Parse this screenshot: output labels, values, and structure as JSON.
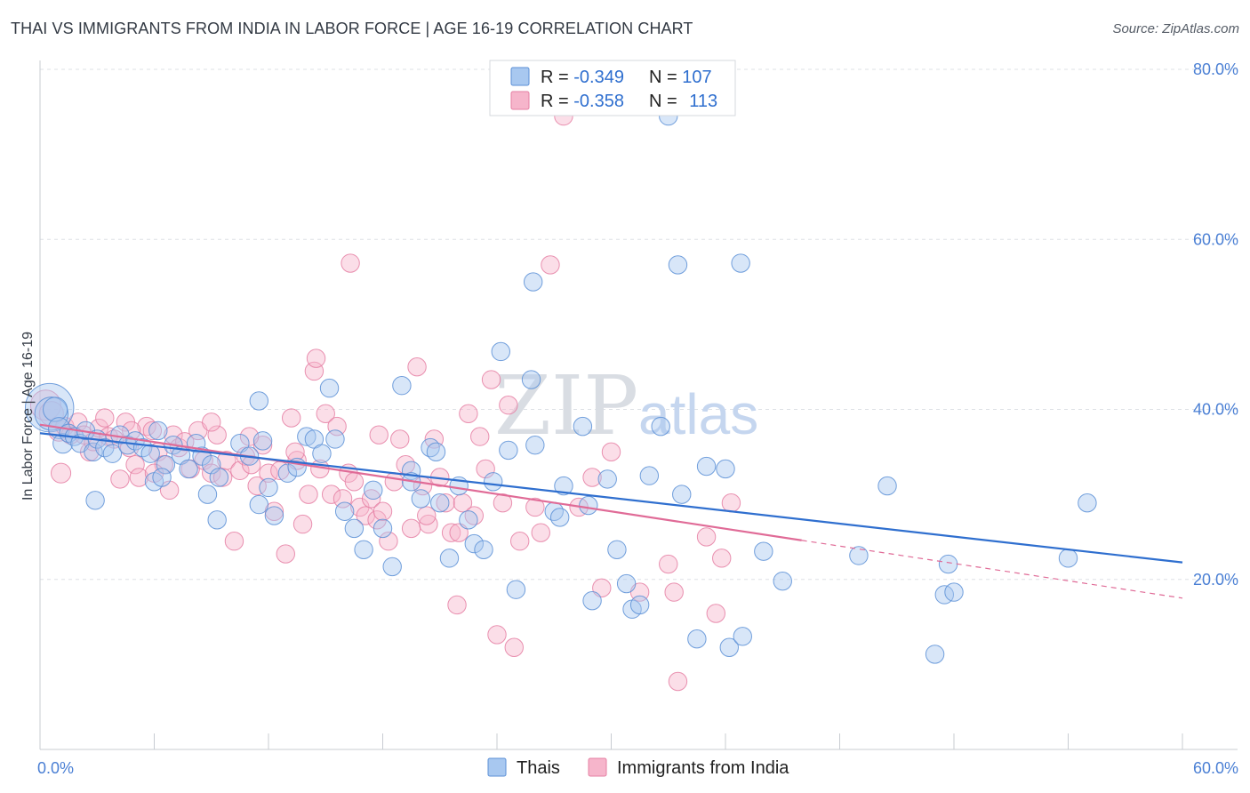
{
  "title": "THAI VS IMMIGRANTS FROM INDIA IN LABOR FORCE | AGE 16-19 CORRELATION CHART",
  "source": "Source: ZipAtlas.com",
  "watermark": {
    "zip": "ZIP",
    "atlas": "atlas"
  },
  "colors": {
    "thai_fill": "#a8c8f0",
    "thai_stroke": "#5b8fd6",
    "thai_line": "#2f6fcf",
    "india_fill": "#f6b5cb",
    "india_stroke": "#e57fa3",
    "india_line": "#e06b97",
    "accent_text": "#2f6fcf"
  },
  "stats": [
    {
      "r_label": "R = ",
      "r_value": "-0.349",
      "n_label": "N = ",
      "n_value": "107"
    },
    {
      "r_label": "R = ",
      "r_value": "-0.358",
      "n_label": "N = ",
      "n_value": "113"
    }
  ],
  "chart_data": {
    "type": "scatter",
    "ylabel": "In Labor Force | Age 16-19",
    "xlim": [
      0,
      60
    ],
    "ylim": [
      0,
      80
    ],
    "x_tick_labels": [
      {
        "value": 0,
        "label": "0.0%"
      },
      {
        "value": 60,
        "label": "60.0%"
      }
    ],
    "y_tick_labels": [
      {
        "value": 20,
        "label": "20.0%"
      },
      {
        "value": 40,
        "label": "40.0%"
      },
      {
        "value": 60,
        "label": "60.0%"
      },
      {
        "value": 80,
        "label": "80.0%"
      }
    ],
    "grid": true,
    "legend_position": "bottom-center",
    "series": [
      {
        "name": "Thais",
        "trend": {
          "x": [
            0,
            60
          ],
          "y": [
            37.2,
            22.0
          ],
          "solid_until": 60
        },
        "points": [
          [
            0.5,
            40.2,
            3.2
          ],
          [
            0.6,
            39.5,
            2.2
          ],
          [
            0.8,
            40.0,
            1.6
          ],
          [
            1.0,
            37.8,
            1.4
          ],
          [
            1.2,
            36.0,
            1.3
          ],
          [
            1.5,
            37.2,
            1.2
          ],
          [
            1.8,
            36.8,
            1.2
          ],
          [
            2.1,
            36.0,
            1.2
          ],
          [
            2.4,
            37.5,
            1.2
          ],
          [
            2.8,
            35.0,
            1.2
          ],
          [
            3.0,
            36.5,
            1.2
          ],
          [
            3.4,
            35.5,
            1.2
          ],
          [
            3.8,
            34.8,
            1.2
          ],
          [
            4.2,
            37.0,
            1.2
          ],
          [
            4.6,
            35.8,
            1.2
          ],
          [
            5.0,
            36.3,
            1.2
          ],
          [
            5.4,
            35.5,
            1.2
          ],
          [
            5.8,
            34.8,
            1.2
          ],
          [
            6.2,
            37.5,
            1.2
          ],
          [
            6.6,
            33.5,
            1.2
          ],
          [
            7.0,
            35.8,
            1.2
          ],
          [
            7.4,
            34.6,
            1.2
          ],
          [
            7.8,
            33.0,
            1.2
          ],
          [
            2.9,
            29.3,
            1.2
          ],
          [
            6.0,
            31.5,
            1.2
          ],
          [
            6.4,
            32.0,
            1.2
          ],
          [
            8.2,
            36.0,
            1.2
          ],
          [
            8.5,
            34.5,
            1.2
          ],
          [
            9.0,
            33.5,
            1.2
          ],
          [
            9.4,
            32.0,
            1.2
          ],
          [
            8.8,
            30.0,
            1.2
          ],
          [
            9.3,
            27.0,
            1.2
          ],
          [
            10.5,
            36.0,
            1.2
          ],
          [
            11.0,
            34.5,
            1.2
          ],
          [
            12.0,
            30.8,
            1.2
          ],
          [
            11.5,
            28.8,
            1.2
          ],
          [
            12.3,
            27.5,
            1.2
          ],
          [
            11.7,
            36.3,
            1.2
          ],
          [
            11.5,
            41.0,
            1.2
          ],
          [
            13.0,
            32.5,
            1.2
          ],
          [
            13.5,
            33.2,
            1.2
          ],
          [
            14.0,
            36.8,
            1.2
          ],
          [
            14.4,
            36.5,
            1.2
          ],
          [
            14.8,
            34.8,
            1.2
          ],
          [
            15.5,
            36.5,
            1.2
          ],
          [
            15.2,
            42.5,
            1.2
          ],
          [
            16.0,
            28.0,
            1.2
          ],
          [
            16.5,
            26.0,
            1.2
          ],
          [
            17.0,
            23.5,
            1.2
          ],
          [
            17.5,
            30.5,
            1.2
          ],
          [
            18.0,
            26.0,
            1.2
          ],
          [
            18.5,
            21.5,
            1.2
          ],
          [
            19.0,
            42.8,
            1.2
          ],
          [
            19.5,
            32.8,
            1.2
          ],
          [
            19.5,
            31.5,
            1.2
          ],
          [
            20.0,
            29.5,
            1.2
          ],
          [
            20.5,
            35.5,
            1.2
          ],
          [
            20.8,
            35.0,
            1.2
          ],
          [
            21.0,
            29.0,
            1.2
          ],
          [
            21.5,
            22.5,
            1.2
          ],
          [
            22.0,
            31.0,
            1.2
          ],
          [
            22.5,
            27.0,
            1.2
          ],
          [
            22.8,
            24.2,
            1.2
          ],
          [
            23.3,
            23.5,
            1.2
          ],
          [
            23.8,
            31.5,
            1.2
          ],
          [
            24.2,
            46.8,
            1.2
          ],
          [
            24.6,
            35.2,
            1.2
          ],
          [
            25.0,
            18.8,
            1.2
          ],
          [
            26.0,
            35.8,
            1.2
          ],
          [
            25.8,
            43.5,
            1.2
          ],
          [
            25.9,
            55.0,
            1.2
          ],
          [
            27.0,
            28.0,
            1.2
          ],
          [
            27.3,
            27.3,
            1.2
          ],
          [
            27.5,
            31.0,
            1.2
          ],
          [
            28.5,
            38.0,
            1.2
          ],
          [
            28.8,
            28.7,
            1.2
          ],
          [
            29.0,
            17.5,
            1.2
          ],
          [
            29.8,
            31.8,
            1.2
          ],
          [
            30.3,
            23.5,
            1.2
          ],
          [
            30.8,
            19.5,
            1.2
          ],
          [
            31.1,
            16.5,
            1.2
          ],
          [
            31.5,
            17.0,
            1.2
          ],
          [
            32.0,
            32.2,
            1.2
          ],
          [
            32.6,
            38.0,
            1.2
          ],
          [
            33.0,
            74.5,
            1.2
          ],
          [
            33.5,
            57.0,
            1.2
          ],
          [
            33.7,
            30.0,
            1.2
          ],
          [
            34.5,
            13.0,
            1.2
          ],
          [
            35.0,
            33.3,
            1.2
          ],
          [
            36.0,
            33.0,
            1.2
          ],
          [
            36.2,
            12.0,
            1.2
          ],
          [
            36.8,
            57.2,
            1.2
          ],
          [
            36.9,
            13.3,
            1.2
          ],
          [
            38.0,
            23.3,
            1.2
          ],
          [
            39.0,
            19.8,
            1.2
          ],
          [
            43.0,
            22.8,
            1.2
          ],
          [
            44.5,
            31.0,
            1.2
          ],
          [
            47.0,
            11.2,
            1.2
          ],
          [
            47.5,
            18.2,
            1.2
          ],
          [
            47.7,
            21.8,
            1.2
          ],
          [
            48.0,
            18.5,
            1.2
          ],
          [
            54.0,
            22.5,
            1.2
          ],
          [
            55.0,
            29.0,
            1.2
          ]
        ]
      },
      {
        "name": "Immigrants from India",
        "trend": {
          "x": [
            0,
            60
          ],
          "y": [
            38.2,
            17.8
          ],
          "solid_until": 40
        },
        "points": [
          [
            0.3,
            40.5,
            2.0
          ],
          [
            0.6,
            39.5,
            1.6
          ],
          [
            1.0,
            37.5,
            1.4
          ],
          [
            1.1,
            32.5,
            1.3
          ],
          [
            1.3,
            38.0,
            1.2
          ],
          [
            1.6,
            37.0,
            1.2
          ],
          [
            2.0,
            38.5,
            1.2
          ],
          [
            2.3,
            37.0,
            1.2
          ],
          [
            2.6,
            35.0,
            1.2
          ],
          [
            2.8,
            36.2,
            1.2
          ],
          [
            3.1,
            37.8,
            1.2
          ],
          [
            3.4,
            39.0,
            1.2
          ],
          [
            3.6,
            36.8,
            1.2
          ],
          [
            3.9,
            36.5,
            1.2
          ],
          [
            4.2,
            31.8,
            1.2
          ],
          [
            4.5,
            38.5,
            1.2
          ],
          [
            4.7,
            35.5,
            1.2
          ],
          [
            5.0,
            33.5,
            1.2
          ],
          [
            5.2,
            32.0,
            1.2
          ],
          [
            5.6,
            38.0,
            1.2
          ],
          [
            5.9,
            37.5,
            1.2
          ],
          [
            6.2,
            35.0,
            1.2
          ],
          [
            6.5,
            33.5,
            1.2
          ],
          [
            6.8,
            30.5,
            1.2
          ],
          [
            7.0,
            37.0,
            1.2
          ],
          [
            7.3,
            35.5,
            1.2
          ],
          [
            7.6,
            36.2,
            1.2
          ],
          [
            7.9,
            33.0,
            1.2
          ],
          [
            8.3,
            37.5,
            1.2
          ],
          [
            8.6,
            34.0,
            1.2
          ],
          [
            9.0,
            32.5,
            1.2
          ],
          [
            9.3,
            37.0,
            1.2
          ],
          [
            9.6,
            32.0,
            1.2
          ],
          [
            9.8,
            34.0,
            1.2
          ],
          [
            10.2,
            24.5,
            1.2
          ],
          [
            10.5,
            32.8,
            1.2
          ],
          [
            10.8,
            34.5,
            1.2
          ],
          [
            11.1,
            33.5,
            1.2
          ],
          [
            11.4,
            31.0,
            1.2
          ],
          [
            11.7,
            35.8,
            1.2
          ],
          [
            12.0,
            32.5,
            1.2
          ],
          [
            12.3,
            28.0,
            1.2
          ],
          [
            12.6,
            32.8,
            1.2
          ],
          [
            12.9,
            23.0,
            1.2
          ],
          [
            13.2,
            39.0,
            1.2
          ],
          [
            13.5,
            34.0,
            1.2
          ],
          [
            13.8,
            26.5,
            1.2
          ],
          [
            14.1,
            30.0,
            1.2
          ],
          [
            14.4,
            44.5,
            1.2
          ],
          [
            14.7,
            33.0,
            1.2
          ],
          [
            15.0,
            39.5,
            1.2
          ],
          [
            15.3,
            30.0,
            1.2
          ],
          [
            15.6,
            38.0,
            1.2
          ],
          [
            15.9,
            29.5,
            1.2
          ],
          [
            16.2,
            32.5,
            1.2
          ],
          [
            16.5,
            31.5,
            1.2
          ],
          [
            16.8,
            28.5,
            1.2
          ],
          [
            17.1,
            27.5,
            1.2
          ],
          [
            17.4,
            29.5,
            1.2
          ],
          [
            17.7,
            27.0,
            1.2
          ],
          [
            18.0,
            28.0,
            1.2
          ],
          [
            18.3,
            24.5,
            1.2
          ],
          [
            18.6,
            31.5,
            1.2
          ],
          [
            18.9,
            36.5,
            1.2
          ],
          [
            19.2,
            33.5,
            1.2
          ],
          [
            19.5,
            26.0,
            1.2
          ],
          [
            19.8,
            45.0,
            1.2
          ],
          [
            20.1,
            31.0,
            1.2
          ],
          [
            20.4,
            26.5,
            1.2
          ],
          [
            20.7,
            36.5,
            1.2
          ],
          [
            21.0,
            32.0,
            1.2
          ],
          [
            21.3,
            29.0,
            1.2
          ],
          [
            21.6,
            25.5,
            1.2
          ],
          [
            21.9,
            17.0,
            1.2
          ],
          [
            22.2,
            29.0,
            1.2
          ],
          [
            22.5,
            39.5,
            1.2
          ],
          [
            22.8,
            27.5,
            1.2
          ],
          [
            23.1,
            36.8,
            1.2
          ],
          [
            23.4,
            33.0,
            1.2
          ],
          [
            23.7,
            43.5,
            1.2
          ],
          [
            24.0,
            13.5,
            1.2
          ],
          [
            24.3,
            29.0,
            1.2
          ],
          [
            24.6,
            40.5,
            1.2
          ],
          [
            24.9,
            12.0,
            1.2
          ],
          [
            25.2,
            24.5,
            1.2
          ],
          [
            26.0,
            28.5,
            1.2
          ],
          [
            26.3,
            25.5,
            1.2
          ],
          [
            26.8,
            57.0,
            1.2
          ],
          [
            27.5,
            74.5,
            1.2
          ],
          [
            28.3,
            28.5,
            1.2
          ],
          [
            29.0,
            32.0,
            1.2
          ],
          [
            29.5,
            19.0,
            1.2
          ],
          [
            30.0,
            35.0,
            1.2
          ],
          [
            31.5,
            18.5,
            1.2
          ],
          [
            33.0,
            21.8,
            1.2
          ],
          [
            33.3,
            18.5,
            1.2
          ],
          [
            33.5,
            8.0,
            1.2
          ],
          [
            35.0,
            25.0,
            1.2
          ],
          [
            35.5,
            16.0,
            1.2
          ],
          [
            35.8,
            22.5,
            1.2
          ],
          [
            36.3,
            29.0,
            1.2
          ],
          [
            14.5,
            46.0,
            1.2
          ],
          [
            16.3,
            57.2,
            1.2
          ],
          [
            9.0,
            38.5,
            1.2
          ],
          [
            11.0,
            36.8,
            1.2
          ],
          [
            13.4,
            35.0,
            1.2
          ],
          [
            17.8,
            37.0,
            1.2
          ],
          [
            20.3,
            27.5,
            1.2
          ],
          [
            22.0,
            25.5,
            1.2
          ],
          [
            6.0,
            32.5,
            1.2
          ],
          [
            4.8,
            37.5,
            1.2
          ]
        ]
      }
    ]
  }
}
